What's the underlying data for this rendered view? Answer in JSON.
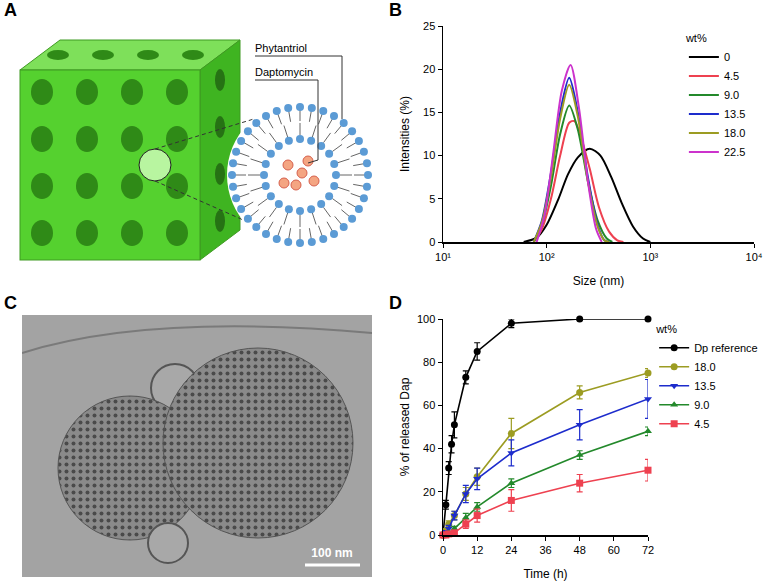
{
  "chart_data": [
    {
      "panel": "B",
      "type": "line",
      "x_label": "Size (nm)",
      "y_label": "Intensities (%)",
      "legend_title": "wt%",
      "legend": "top right",
      "log": "x",
      "grid": false,
      "xlim": [
        10,
        10000
      ],
      "xticks": [
        {
          "value": 10,
          "label": "10¹"
        },
        {
          "value": 100,
          "label": "10²"
        },
        {
          "value": 1000,
          "label": "10³"
        },
        {
          "value": 10000,
          "label": "10⁴"
        }
      ],
      "ylim": [
        0,
        25
      ],
      "yticks": [
        0,
        5,
        10,
        15,
        20,
        25
      ],
      "series": [
        {
          "name": "0",
          "color": "#000000",
          "x": [
            60,
            80,
            100,
            130,
            160,
            200,
            260,
            330,
            420,
            530,
            680,
            850,
            1000
          ],
          "values": [
            0,
            0.5,
            2,
            5,
            7.8,
            9.8,
            10.8,
            10,
            7.5,
            4.5,
            1.8,
            0.4,
            0
          ]
        },
        {
          "name": "4.5",
          "color": "#ee4150",
          "x": [
            75,
            90,
            110,
            135,
            165,
            185,
            210,
            260,
            320,
            400,
            480,
            550
          ],
          "values": [
            0,
            1.5,
            5,
            10,
            13.8,
            14,
            12.5,
            8.5,
            4,
            1.2,
            0.2,
            0
          ]
        },
        {
          "name": "9.0",
          "color": "#23892b",
          "x": [
            75,
            90,
            110,
            135,
            165,
            200,
            250,
            310,
            380,
            430
          ],
          "values": [
            0,
            2,
            6.5,
            12.5,
            15.8,
            13,
            7,
            2.5,
            0.4,
            0
          ]
        },
        {
          "name": "13.5",
          "color": "#1d2ccc",
          "x": [
            75,
            90,
            110,
            135,
            165,
            200,
            250,
            310,
            360,
            400
          ],
          "values": [
            0,
            2.5,
            8,
            15,
            19,
            15,
            7.5,
            2,
            0.2,
            0
          ]
        },
        {
          "name": "18.0",
          "color": "#9c9c22",
          "x": [
            75,
            90,
            110,
            135,
            165,
            200,
            250,
            310,
            360,
            400
          ],
          "values": [
            0,
            2.3,
            7.5,
            14.3,
            18.2,
            14.5,
            7,
            1.8,
            0.2,
            0
          ]
        },
        {
          "name": "22.5",
          "color": "#cc33cc",
          "x": [
            80,
            95,
            115,
            140,
            170,
            205,
            250,
            300,
            340
          ],
          "values": [
            0,
            3,
            10,
            17.5,
            20.5,
            15.5,
            7,
            1.5,
            0
          ]
        }
      ]
    },
    {
      "panel": "D",
      "type": "line",
      "x_label": "Time (h)",
      "y_label": "% of released Dap",
      "legend_title": "wt%",
      "legend": "right",
      "grid": false,
      "xlim": [
        0,
        72
      ],
      "xticks": [
        0,
        12,
        24,
        36,
        48,
        60,
        72
      ],
      "ylim": [
        0,
        100
      ],
      "yticks": [
        0,
        20,
        40,
        60,
        80,
        100
      ],
      "series": [
        {
          "name": "Dp reference",
          "color": "#000000",
          "marker": "circle",
          "x": [
            0,
            1,
            2,
            3,
            4,
            8,
            12,
            24,
            48,
            72
          ],
          "values": [
            0,
            14,
            31,
            42,
            51,
            73,
            85,
            98,
            100,
            100
          ],
          "errors": [
            0,
            2,
            3,
            4,
            6,
            3,
            4,
            2,
            0.5,
            0.5
          ]
        },
        {
          "name": "18.0",
          "color": "#9c9c22",
          "marker": "circle",
          "x": [
            0,
            1,
            2,
            4,
            8,
            12,
            24,
            48,
            72
          ],
          "values": [
            0,
            2,
            5,
            9,
            19,
            27,
            47,
            66,
            75
          ],
          "errors": [
            0,
            1,
            1.5,
            2,
            3,
            4,
            7,
            3,
            2
          ]
        },
        {
          "name": "13.5",
          "color": "#1d2ccc",
          "marker": "triangle-down",
          "x": [
            0,
            1,
            2,
            4,
            8,
            12,
            24,
            48,
            72
          ],
          "values": [
            0,
            1,
            3,
            9,
            19,
            26,
            38,
            51,
            63
          ],
          "errors": [
            0,
            1,
            1.5,
            2,
            4,
            5,
            6,
            7,
            9
          ]
        },
        {
          "name": "9.0",
          "color": "#23892b",
          "marker": "triangle-up",
          "x": [
            0,
            1,
            2,
            4,
            8,
            12,
            24,
            48,
            72
          ],
          "values": [
            0,
            0.5,
            1,
            3,
            8,
            13,
            24,
            37,
            48
          ],
          "errors": [
            0,
            0.3,
            0.5,
            1,
            2,
            2,
            2,
            2,
            2
          ]
        },
        {
          "name": "4.5",
          "color": "#ee4150",
          "marker": "square",
          "x": [
            0,
            1,
            2,
            4,
            8,
            12,
            24,
            48,
            72
          ],
          "values": [
            0,
            0,
            0.5,
            1,
            5,
            9,
            16,
            24,
            30
          ],
          "errors": [
            0,
            0,
            0.3,
            0.5,
            2,
            3,
            5,
            4,
            5
          ]
        }
      ]
    }
  ],
  "panels": [
    {
      "panel": "A",
      "labels": [
        "Phytantriol",
        "Daptomycin"
      ]
    },
    {
      "panel": "C",
      "scale_bar": "100 nm"
    }
  ]
}
